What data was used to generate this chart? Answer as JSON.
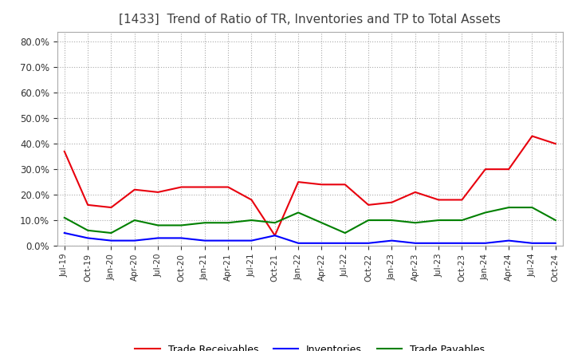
{
  "title": "[1433]  Trend of Ratio of TR, Inventories and TP to Total Assets",
  "x_labels": [
    "Jul-19",
    "Oct-19",
    "Jan-20",
    "Apr-20",
    "Jul-20",
    "Oct-20",
    "Jan-21",
    "Apr-21",
    "Jul-21",
    "Oct-21",
    "Jan-22",
    "Apr-22",
    "Jul-22",
    "Oct-22",
    "Jan-23",
    "Apr-23",
    "Jul-23",
    "Oct-23",
    "Jan-24",
    "Apr-24",
    "Jul-24",
    "Oct-24"
  ],
  "trade_receivables": [
    0.37,
    0.16,
    0.15,
    0.22,
    0.21,
    0.23,
    0.23,
    0.23,
    0.18,
    0.04,
    0.25,
    0.24,
    0.24,
    0.16,
    0.17,
    0.21,
    0.18,
    0.18,
    0.3,
    0.3,
    0.43,
    0.4
  ],
  "inventories": [
    0.05,
    0.03,
    0.02,
    0.02,
    0.03,
    0.03,
    0.02,
    0.02,
    0.02,
    0.04,
    0.01,
    0.01,
    0.01,
    0.01,
    0.02,
    0.01,
    0.01,
    0.01,
    0.01,
    0.02,
    0.01,
    0.01
  ],
  "trade_payables": [
    0.11,
    0.06,
    0.05,
    0.1,
    0.08,
    0.08,
    0.09,
    0.09,
    0.1,
    0.09,
    0.13,
    0.09,
    0.05,
    0.1,
    0.1,
    0.09,
    0.1,
    0.1,
    0.13,
    0.15,
    0.15,
    0.1
  ],
  "ylim": [
    0.0,
    0.84
  ],
  "yticks": [
    0.0,
    0.1,
    0.2,
    0.3,
    0.4,
    0.5,
    0.6,
    0.7,
    0.8
  ],
  "color_tr": "#e8000d",
  "color_inv": "#0000ff",
  "color_tp": "#008000",
  "bg_color": "#ffffff",
  "grid_color": "#aaaaaa",
  "title_fontsize": 11,
  "title_color": "#404040",
  "legend_labels": [
    "Trade Receivables",
    "Inventories",
    "Trade Payables"
  ]
}
